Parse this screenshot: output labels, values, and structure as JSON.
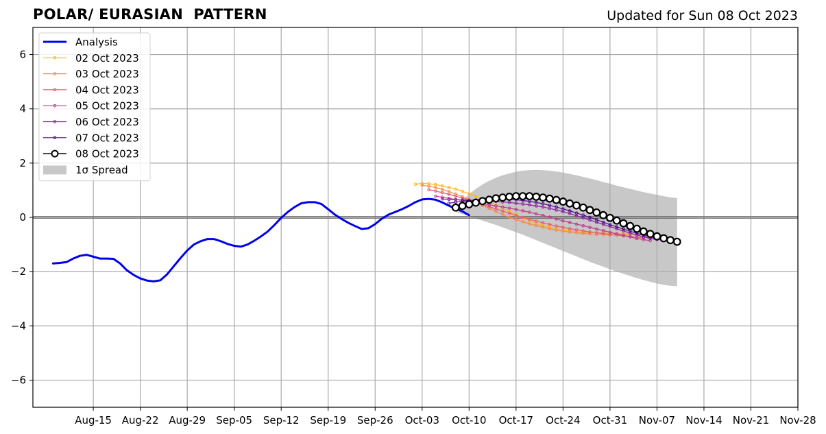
{
  "header": {
    "title": "POLAR/ EURASIAN  PATTERN",
    "updated": "Updated for Sun 08 Oct 2023"
  },
  "chart_data": {
    "type": "line",
    "title": "POLAR/ EURASIAN  PATTERN",
    "xlabel": "",
    "ylabel": "",
    "x_axis": "date",
    "xlim": [
      "2023-08-06",
      "2023-11-28"
    ],
    "ylim": [
      -7,
      7
    ],
    "yticks": [
      -6,
      -4,
      -2,
      0,
      2,
      4,
      6
    ],
    "ytick_labels": [
      "−6",
      "−4",
      "−2",
      "0",
      "2",
      "4",
      "6"
    ],
    "xticks": [
      "2023-08-15",
      "2023-08-22",
      "2023-08-29",
      "2023-09-05",
      "2023-09-12",
      "2023-09-19",
      "2023-09-26",
      "2023-10-03",
      "2023-10-10",
      "2023-10-17",
      "2023-10-24",
      "2023-10-31",
      "2023-11-07",
      "2023-11-14",
      "2023-11-21",
      "2023-11-28"
    ],
    "xtick_labels": [
      "Aug-15",
      "Aug-22",
      "Aug-29",
      "Sep-05",
      "Sep-12",
      "Sep-19",
      "Sep-26",
      "Oct-03",
      "Oct-10",
      "Oct-17",
      "Oct-24",
      "Oct-31",
      "Nov-07",
      "Nov-14",
      "Nov-21",
      "Nov-28"
    ],
    "grid": true,
    "zero_line": true,
    "legend_position": "top-left",
    "analysis": {
      "name": "Analysis",
      "color": "#0000ee",
      "start": "2023-08-09",
      "values": [
        -1.7,
        -1.68,
        -1.65,
        -1.52,
        -1.42,
        -1.38,
        -1.45,
        -1.52,
        -1.52,
        -1.53,
        -1.7,
        -1.95,
        -2.12,
        -2.25,
        -2.33,
        -2.36,
        -2.32,
        -2.1,
        -1.8,
        -1.5,
        -1.22,
        -1.0,
        -0.88,
        -0.8,
        -0.8,
        -0.88,
        -0.98,
        -1.05,
        -1.08,
        -1.0,
        -0.86,
        -0.7,
        -0.52,
        -0.28,
        -0.02,
        0.2,
        0.38,
        0.52,
        0.56,
        0.56,
        0.49,
        0.3,
        0.1,
        -0.06,
        -0.2,
        -0.32,
        -0.43,
        -0.4,
        -0.25,
        -0.05,
        0.1,
        0.2,
        0.3,
        0.42,
        0.56,
        0.66,
        0.68,
        0.65,
        0.55,
        0.43,
        0.32,
        0.22,
        0.08
      ]
    },
    "forecasts": [
      {
        "name": "02 Oct 2023",
        "color": "#fbb61a",
        "start": "2023-10-02",
        "values": [
          1.22,
          1.25,
          1.24,
          1.21,
          1.16,
          1.1,
          1.04,
          0.96,
          0.87,
          0.78,
          0.68,
          0.57,
          0.45,
          0.33,
          0.22,
          0.1,
          -0.02,
          -0.12,
          -0.22,
          -0.3,
          -0.37,
          -0.42,
          -0.47,
          -0.51,
          -0.53,
          -0.55,
          -0.56,
          -0.57,
          -0.58,
          -0.58,
          -0.59,
          -0.6,
          -0.6
        ]
      },
      {
        "name": "03 Oct 2023",
        "color": "#f6894b",
        "start": "2023-10-03",
        "values": [
          1.18,
          1.15,
          1.1,
          1.03,
          0.95,
          0.86,
          0.76,
          0.66,
          0.55,
          0.44,
          0.33,
          0.22,
          0.11,
          0.0,
          -0.08,
          -0.16,
          -0.24,
          -0.3,
          -0.36,
          -0.42,
          -0.47,
          -0.51,
          -0.54,
          -0.57,
          -0.59,
          -0.61,
          -0.63,
          -0.64,
          -0.65,
          -0.65,
          -0.64,
          -0.63,
          -0.62
        ]
      },
      {
        "name": "04 Oct 2023",
        "color": "#e45a70",
        "start": "2023-10-04",
        "values": [
          1.02,
          0.97,
          0.91,
          0.85,
          0.78,
          0.71,
          0.63,
          0.55,
          0.47,
          0.39,
          0.31,
          0.23,
          0.15,
          0.07,
          0.0,
          -0.07,
          -0.14,
          -0.2,
          -0.26,
          -0.32,
          -0.37,
          -0.42,
          -0.46,
          -0.5,
          -0.54,
          -0.57,
          -0.6,
          -0.63,
          -0.65,
          -0.68,
          -0.7,
          -0.73,
          -0.76
        ]
      },
      {
        "name": "05 Oct 2023",
        "color": "#bf3a8a",
        "start": "2023-10-05",
        "values": [
          0.78,
          0.74,
          0.7,
          0.66,
          0.62,
          0.58,
          0.54,
          0.5,
          0.46,
          0.42,
          0.38,
          0.34,
          0.29,
          0.24,
          0.19,
          0.13,
          0.07,
          0.01,
          -0.06,
          -0.13,
          -0.19,
          -0.25,
          -0.31,
          -0.37,
          -0.43,
          -0.49,
          -0.55,
          -0.61,
          -0.67,
          -0.72,
          -0.78,
          -0.82,
          -0.86
        ]
      },
      {
        "name": "06 Oct 2023",
        "color": "#8b1fa0",
        "start": "2023-10-06",
        "values": [
          0.68,
          0.66,
          0.65,
          0.64,
          0.63,
          0.62,
          0.61,
          0.6,
          0.59,
          0.57,
          0.55,
          0.52,
          0.49,
          0.46,
          0.42,
          0.38,
          0.33,
          0.27,
          0.21,
          0.14,
          0.06,
          -0.02,
          -0.1,
          -0.18,
          -0.26,
          -0.34,
          -0.42,
          -0.5,
          -0.58,
          -0.65,
          -0.72,
          -0.78,
          -0.82
        ]
      },
      {
        "name": "07 Oct 2023",
        "color": "#4a0a8a",
        "start": "2023-10-07",
        "values": [
          0.52,
          0.56,
          0.59,
          0.62,
          0.64,
          0.66,
          0.67,
          0.68,
          0.68,
          0.67,
          0.65,
          0.62,
          0.59,
          0.55,
          0.5,
          0.44,
          0.38,
          0.31,
          0.24,
          0.16,
          0.08,
          0.0,
          -0.09,
          -0.18,
          -0.27,
          -0.35,
          -0.43,
          -0.51,
          -0.59,
          -0.66,
          -0.72,
          -0.78,
          -0.83
        ]
      },
      {
        "name": "08 Oct 2023",
        "color": "#000000",
        "start": "2023-10-08",
        "highlight": true,
        "values": [
          0.36,
          0.42,
          0.48,
          0.54,
          0.6,
          0.65,
          0.7,
          0.73,
          0.76,
          0.78,
          0.78,
          0.78,
          0.76,
          0.73,
          0.69,
          0.64,
          0.58,
          0.51,
          0.44,
          0.36,
          0.27,
          0.18,
          0.08,
          -0.02,
          -0.12,
          -0.22,
          -0.32,
          -0.42,
          -0.52,
          -0.61,
          -0.7,
          -0.77,
          -0.84,
          -0.9
        ]
      }
    ],
    "spread": {
      "name": "1σ Spread",
      "color": "#c8c8c8",
      "start": "2023-10-08",
      "upper": [
        0.3,
        0.62,
        0.86,
        1.05,
        1.21,
        1.35,
        1.46,
        1.55,
        1.62,
        1.68,
        1.72,
        1.74,
        1.75,
        1.74,
        1.72,
        1.69,
        1.65,
        1.6,
        1.55,
        1.49,
        1.43,
        1.37,
        1.3,
        1.24,
        1.17,
        1.11,
        1.05,
        0.99,
        0.93,
        0.88,
        0.83,
        0.78,
        0.74,
        0.71
      ],
      "lower": [
        0.2,
        0.12,
        0.04,
        -0.04,
        -0.12,
        -0.2,
        -0.28,
        -0.37,
        -0.46,
        -0.55,
        -0.64,
        -0.74,
        -0.84,
        -0.94,
        -1.04,
        -1.14,
        -1.24,
        -1.34,
        -1.44,
        -1.54,
        -1.64,
        -1.73,
        -1.82,
        -1.91,
        -2.0,
        -2.08,
        -2.16,
        -2.24,
        -2.31,
        -2.38,
        -2.44,
        -2.49,
        -2.52,
        -2.54
      ]
    }
  }
}
